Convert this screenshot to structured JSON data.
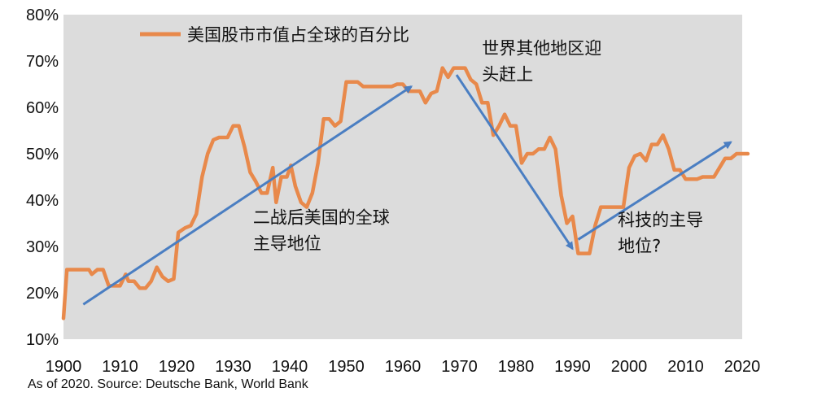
{
  "chart_data": {
    "type": "line",
    "title": "",
    "xlabel": "",
    "ylabel": "",
    "xlim": [
      1900,
      2020
    ],
    "ylim": [
      10,
      80
    ],
    "grid": false,
    "plot_background": "#dcdcdc",
    "legend_position": "top-left",
    "x_ticks": [
      1900,
      1910,
      1920,
      1930,
      1940,
      1950,
      1960,
      1970,
      1980,
      1990,
      2000,
      2010,
      2020
    ],
    "x_tick_labels": [
      "1900",
      "1910",
      "1920",
      "1930",
      "1940",
      "1950",
      "1960",
      "1970",
      "1980",
      "1990",
      "2000",
      "2010",
      "2020"
    ],
    "y_ticks": [
      10,
      20,
      30,
      40,
      50,
      60,
      70,
      80
    ],
    "y_tick_labels": [
      "10%",
      "20%",
      "30%",
      "40%",
      "50%",
      "60%",
      "70%",
      "80%"
    ],
    "series": [
      {
        "name": "美国股市市值占全球的百分比",
        "color": "#e8894b",
        "points": [
          [
            1900,
            14.5
          ],
          [
            1900.6,
            25
          ],
          [
            1904.5,
            25
          ],
          [
            1905,
            24
          ],
          [
            1906,
            25
          ],
          [
            1907,
            25
          ],
          [
            1908,
            21.5
          ],
          [
            1910,
            21.5
          ],
          [
            1911,
            24
          ],
          [
            1911.5,
            22.5
          ],
          [
            1912.5,
            22.5
          ],
          [
            1913.5,
            21
          ],
          [
            1914.5,
            21
          ],
          [
            1915.5,
            22.5
          ],
          [
            1916.5,
            25.5
          ],
          [
            1917.5,
            23.5
          ],
          [
            1918.5,
            22.5
          ],
          [
            1919.5,
            23
          ],
          [
            1920.3,
            33
          ],
          [
            1921.5,
            34
          ],
          [
            1922.5,
            34.5
          ],
          [
            1923.5,
            37
          ],
          [
            1924.5,
            45
          ],
          [
            1925.5,
            50
          ],
          [
            1926.5,
            53
          ],
          [
            1927.5,
            53.5
          ],
          [
            1929,
            53.5
          ],
          [
            1930,
            56
          ],
          [
            1931,
            56
          ],
          [
            1932,
            51.5
          ],
          [
            1933,
            46
          ],
          [
            1934,
            44
          ],
          [
            1935,
            41.5
          ],
          [
            1936,
            41.5
          ],
          [
            1937,
            47
          ],
          [
            1937.6,
            39.5
          ],
          [
            1938.5,
            45
          ],
          [
            1939.5,
            45
          ],
          [
            1940.2,
            47.5
          ],
          [
            1941,
            43
          ],
          [
            1942,
            39.5
          ],
          [
            1943,
            38.5
          ],
          [
            1944,
            41.5
          ],
          [
            1945,
            48
          ],
          [
            1946,
            57.5
          ],
          [
            1947,
            57.5
          ],
          [
            1948,
            56
          ],
          [
            1949,
            57
          ],
          [
            1950,
            65.5
          ],
          [
            1952,
            65.5
          ],
          [
            1953,
            64.5
          ],
          [
            1958,
            64.5
          ],
          [
            1959,
            65
          ],
          [
            1960,
            65
          ],
          [
            1961,
            63.5
          ],
          [
            1963,
            63.5
          ],
          [
            1964,
            61
          ],
          [
            1965,
            63
          ],
          [
            1966,
            63.5
          ],
          [
            1967,
            68.5
          ],
          [
            1968,
            66.5
          ],
          [
            1969,
            68.5
          ],
          [
            1971,
            68.5
          ],
          [
            1972,
            66
          ],
          [
            1973,
            65
          ],
          [
            1974,
            61
          ],
          [
            1975,
            61
          ],
          [
            1976,
            54
          ],
          [
            1977,
            56
          ],
          [
            1978,
            58.5
          ],
          [
            1979,
            56
          ],
          [
            1980,
            56
          ],
          [
            1981,
            48
          ],
          [
            1982,
            50
          ],
          [
            1983,
            50
          ],
          [
            1984,
            51
          ],
          [
            1985,
            51
          ],
          [
            1986,
            53.5
          ],
          [
            1987,
            51
          ],
          [
            1988,
            41
          ],
          [
            1989,
            35
          ],
          [
            1990,
            36.5
          ],
          [
            1991,
            28.5
          ],
          [
            1993,
            28.5
          ],
          [
            1994,
            34.5
          ],
          [
            1995,
            38.5
          ],
          [
            1999,
            38.5
          ],
          [
            2000,
            47
          ],
          [
            2001,
            49.5
          ],
          [
            2002,
            50
          ],
          [
            2003,
            48.5
          ],
          [
            2004,
            52
          ],
          [
            2005,
            52
          ],
          [
            2006,
            54
          ],
          [
            2007,
            51
          ],
          [
            2008,
            46.5
          ],
          [
            2009,
            46.5
          ],
          [
            2010,
            44.5
          ],
          [
            2012,
            44.5
          ],
          [
            2013,
            45
          ],
          [
            2015,
            45
          ],
          [
            2016,
            47
          ],
          [
            2017,
            49
          ],
          [
            2018,
            49
          ],
          [
            2019,
            50
          ],
          [
            2021,
            50
          ]
        ]
      }
    ],
    "trend_arrows": [
      {
        "from": [
          1903.5,
          17.5
        ],
        "to": [
          1961.5,
          64.5
        ],
        "color": "#4a7ec2"
      },
      {
        "from": [
          1969.5,
          67
        ],
        "to": [
          1990,
          29.5
        ],
        "color": "#4a7ec2"
      },
      {
        "from": [
          1991,
          31.5
        ],
        "to": [
          2018,
          52.5
        ],
        "color": "#4a7ec2"
      }
    ],
    "annotations": [
      {
        "lines": [
          "二战后美国的全球",
          "主导地位"
        ],
        "anchor": [
          1933.5,
          35
        ]
      },
      {
        "lines": [
          "世界其他地区迎",
          "头赶上"
        ],
        "anchor": [
          1974,
          71.5
        ]
      },
      {
        "lines": [
          "科技的主导",
          "地位?"
        ],
        "anchor": [
          1998,
          34.5
        ]
      }
    ]
  },
  "source_note": "As of 2020. Source: Deutsche Bank, World Bank"
}
